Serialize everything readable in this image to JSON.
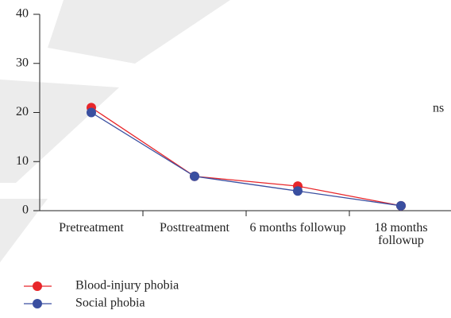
{
  "chart_data": {
    "type": "line",
    "categories": [
      "Pretreatment",
      "Posttreatment",
      "6 months followup",
      "18 months followup"
    ],
    "series": [
      {
        "name": "Blood-injury phobia",
        "color": "#e8262a",
        "values": [
          21,
          7,
          5,
          1
        ]
      },
      {
        "name": "Social phobia",
        "color": "#3a4fa0",
        "values": [
          20,
          7,
          4,
          1
        ]
      }
    ],
    "ylim": [
      0,
      40
    ],
    "yticks": [
      0,
      10,
      20,
      30,
      40
    ],
    "annotation": "ns"
  }
}
